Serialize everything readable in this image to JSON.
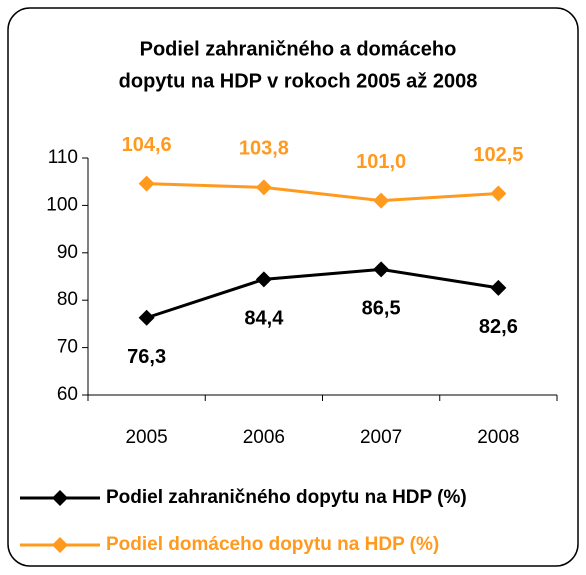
{
  "chart_data": {
    "type": "line",
    "title": [
      "Podiel zahraničného a domáceho",
      "dopytu na HDP v rokoch 2005 až 2008"
    ],
    "categories": [
      "2005",
      "2006",
      "2007",
      "2008"
    ],
    "series": [
      {
        "name": "Podiel zahraničného dopytu na HDP (%)",
        "color": "#000000",
        "values": [
          76.3,
          84.4,
          86.5,
          82.6
        ],
        "value_labels": [
          "76,3",
          "84,4",
          "86,5",
          "82,6"
        ]
      },
      {
        "name": "Podiel domáceho dopytu na HDP (%)",
        "color": "#ff9a1f",
        "values": [
          104.6,
          103.8,
          101.0,
          102.5
        ],
        "value_labels": [
          "104,6",
          "103,8",
          "101,0",
          "102,5"
        ]
      }
    ],
    "ylim": [
      60,
      110
    ],
    "yticks": [
      60,
      70,
      80,
      90,
      100,
      110
    ]
  }
}
